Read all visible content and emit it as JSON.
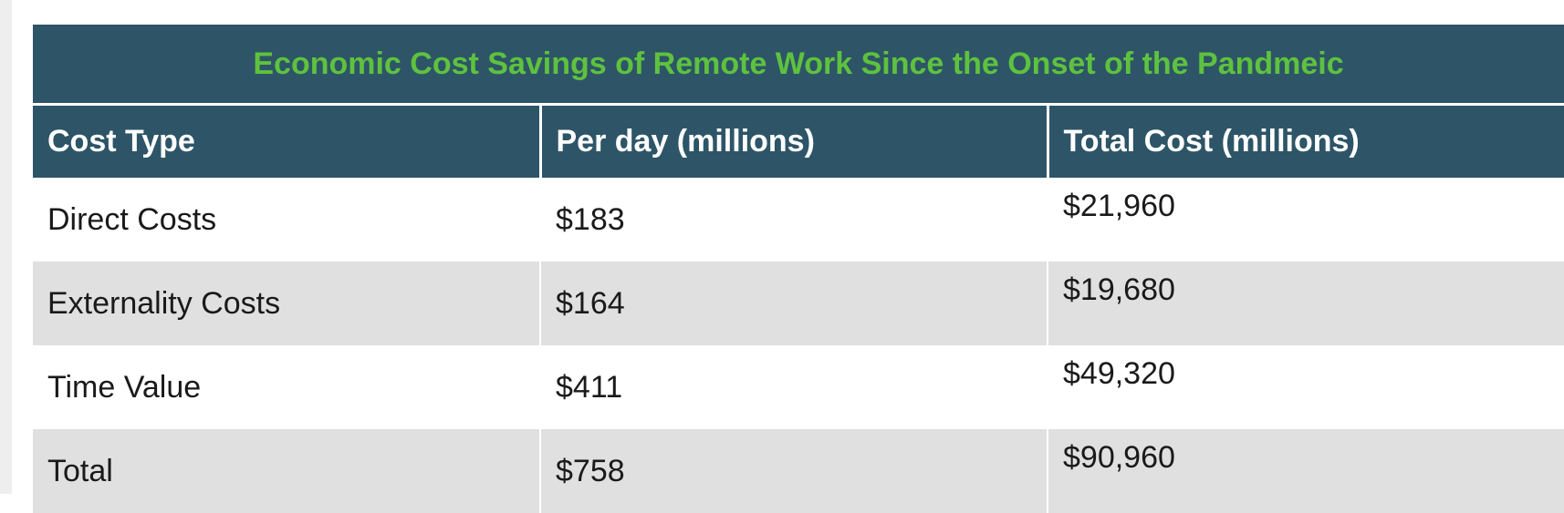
{
  "table": {
    "title": "Economic Cost Savings of Remote Work Since the Onset of the Pandmeic",
    "headers": [
      "Cost Type",
      "Per day (millions)",
      "Total Cost (millions)"
    ],
    "rows": [
      [
        "Direct Costs",
        "$183",
        "$21,960"
      ],
      [
        "Externality Costs",
        "$164",
        "$19,680"
      ],
      [
        "Time Value",
        "$411",
        "$49,320"
      ],
      [
        "Total",
        "$758",
        "$90,960"
      ]
    ]
  },
  "colors": {
    "header_bg": "#2d5567",
    "title_text": "#5ec23e",
    "header_text": "#ffffff",
    "row_shade": "#e0e0e0"
  }
}
